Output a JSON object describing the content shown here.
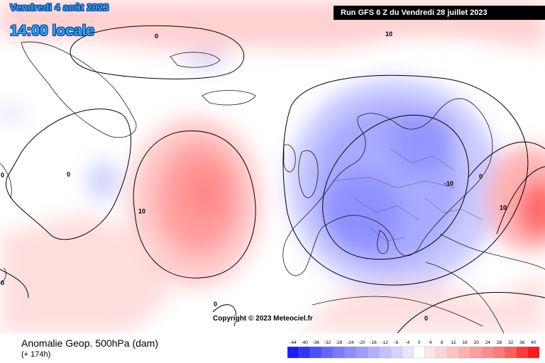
{
  "header": {
    "date": "Vendredi 4 août 2023",
    "time": "14:00 locale",
    "run": "Run GFS 6 Z du Vendredi 28 juillet 2023"
  },
  "map": {
    "contour_labels": [
      "0",
      "0",
      "10",
      "10",
      "-10",
      "0",
      "0",
      "0",
      "10",
      "0",
      "0"
    ]
  },
  "copyright": "Copyright © 2023 Meteociel.fr",
  "footer": {
    "field": "Anomalie Geop. 500hPa (dam)",
    "lead": "(+ 174h)"
  },
  "legend": {
    "ticks": [
      "-44",
      "-40",
      "-36",
      "-32",
      "-28",
      "-24",
      "-20",
      "-16",
      "-12",
      "-8",
      "-4",
      "0",
      "4",
      "8",
      "12",
      "16",
      "20",
      "24",
      "28",
      "32",
      "36",
      "40"
    ],
    "colors": [
      "#1a1aff",
      "#3333ff",
      "#4d4dff",
      "#6666ff",
      "#7a7aff",
      "#8c8cff",
      "#9e9eff",
      "#b0b0ff",
      "#c2c2ff",
      "#d4d4ff",
      "#e6e6ff",
      "#ffffff",
      "#ffe6e6",
      "#ffd4d4",
      "#ffc2c2",
      "#ffb0b0",
      "#ff9e9e",
      "#ff8c8c",
      "#ff7777",
      "#ff5c5c",
      "#ff3838",
      "#ff1a1a"
    ]
  }
}
